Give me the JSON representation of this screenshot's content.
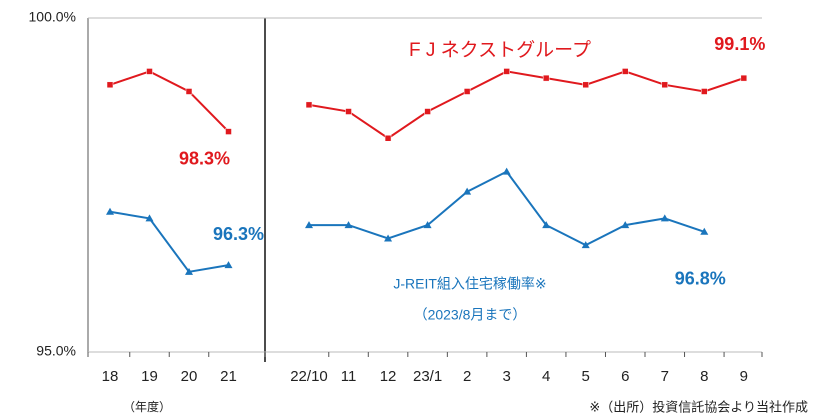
{
  "chart_data": {
    "type": "line",
    "categories": [
      "18",
      "19",
      "20",
      "21",
      "22/10",
      "11",
      "12",
      "23/1",
      "2",
      "3",
      "4",
      "5",
      "6",
      "7",
      "8",
      "9"
    ],
    "series": [
      {
        "name": "F J ネクストグループ",
        "color": "#e0191e",
        "marker": "square",
        "values": [
          99.0,
          99.2,
          98.9,
          98.3,
          98.7,
          98.6,
          98.2,
          98.6,
          98.9,
          99.2,
          99.1,
          99.0,
          99.2,
          99.0,
          98.9,
          99.1
        ]
      },
      {
        "name": "J-REIT組入住宅稼働率※",
        "color": "#1a75bc",
        "marker": "triangle",
        "values": [
          97.1,
          97.0,
          96.2,
          96.3,
          96.9,
          96.9,
          96.7,
          96.9,
          97.4,
          97.7,
          96.9,
          96.6,
          96.9,
          97.0,
          96.8,
          null
        ]
      }
    ],
    "ylim": [
      95.0,
      100.0
    ],
    "yticks": [
      {
        "value": 95.0,
        "label": "95.0%"
      },
      {
        "value": 100.0,
        "label": "100.0%"
      }
    ],
    "annotations": [
      {
        "text": "98.3%",
        "series": 0,
        "point": 3
      },
      {
        "text": "99.1%",
        "series": 0,
        "point": 15
      },
      {
        "text": "96.3%",
        "series": 1,
        "point": 3
      },
      {
        "text": "96.8%",
        "series": 1,
        "point": 14
      }
    ],
    "subnote": "（2023/8月まで）",
    "x_label": "（年度）",
    "source": "※（出所）投資信託協会より当社作成"
  }
}
